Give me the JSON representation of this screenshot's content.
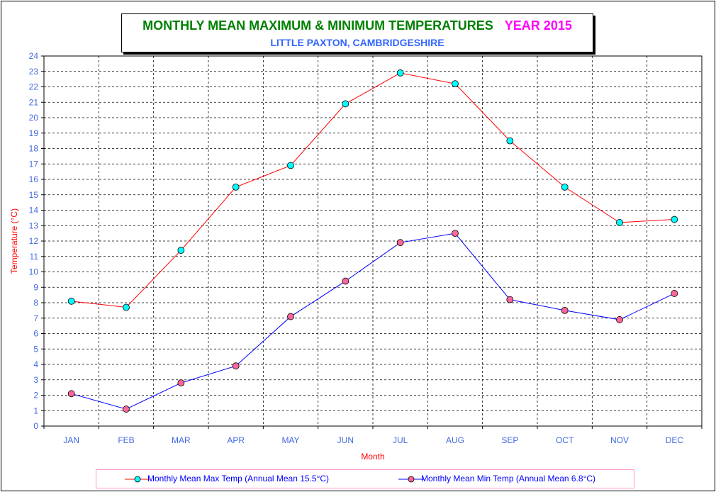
{
  "title": {
    "main": "MONTHLY  MEAN MAXIMUM & MINIMUM TEMPERATURES",
    "year": "YEAR 2015",
    "subtitle": "LITTLE PAXTON, CAMBRIDGESHIRE"
  },
  "colors": {
    "title_main": "#008000",
    "title_year": "#ff00ff",
    "subtitle": "#3366ff",
    "axis_text": "#4169e1",
    "axis_title": "#ff0000",
    "max_line": "#ff0000",
    "max_marker": "#00ffff",
    "min_line": "#0000ff",
    "min_marker": "#ff6699"
  },
  "chart_data": {
    "type": "line",
    "xlabel": "Month",
    "ylabel": "Temperature (°C)",
    "ylim": [
      0,
      24
    ],
    "ytick_step": 1,
    "grid": true,
    "legend_position": "bottom",
    "categories": [
      "JAN",
      "FEB",
      "MAR",
      "APR",
      "MAY",
      "JUN",
      "JUL",
      "AUG",
      "SEP",
      "OCT",
      "NOV",
      "DEC"
    ],
    "series": [
      {
        "name": "Monthly Mean Max Temp (Annual Mean 15.5°C)",
        "values": [
          8.1,
          7.7,
          11.4,
          15.5,
          16.9,
          20.9,
          22.9,
          22.2,
          18.5,
          15.5,
          13.2,
          13.4
        ]
      },
      {
        "name": "Monthly Mean Min Temp (Annual Mean 6.8°C)",
        "values": [
          2.1,
          1.1,
          2.8,
          3.9,
          7.1,
          9.4,
          11.9,
          12.5,
          8.2,
          7.5,
          6.9,
          8.6
        ]
      }
    ]
  }
}
